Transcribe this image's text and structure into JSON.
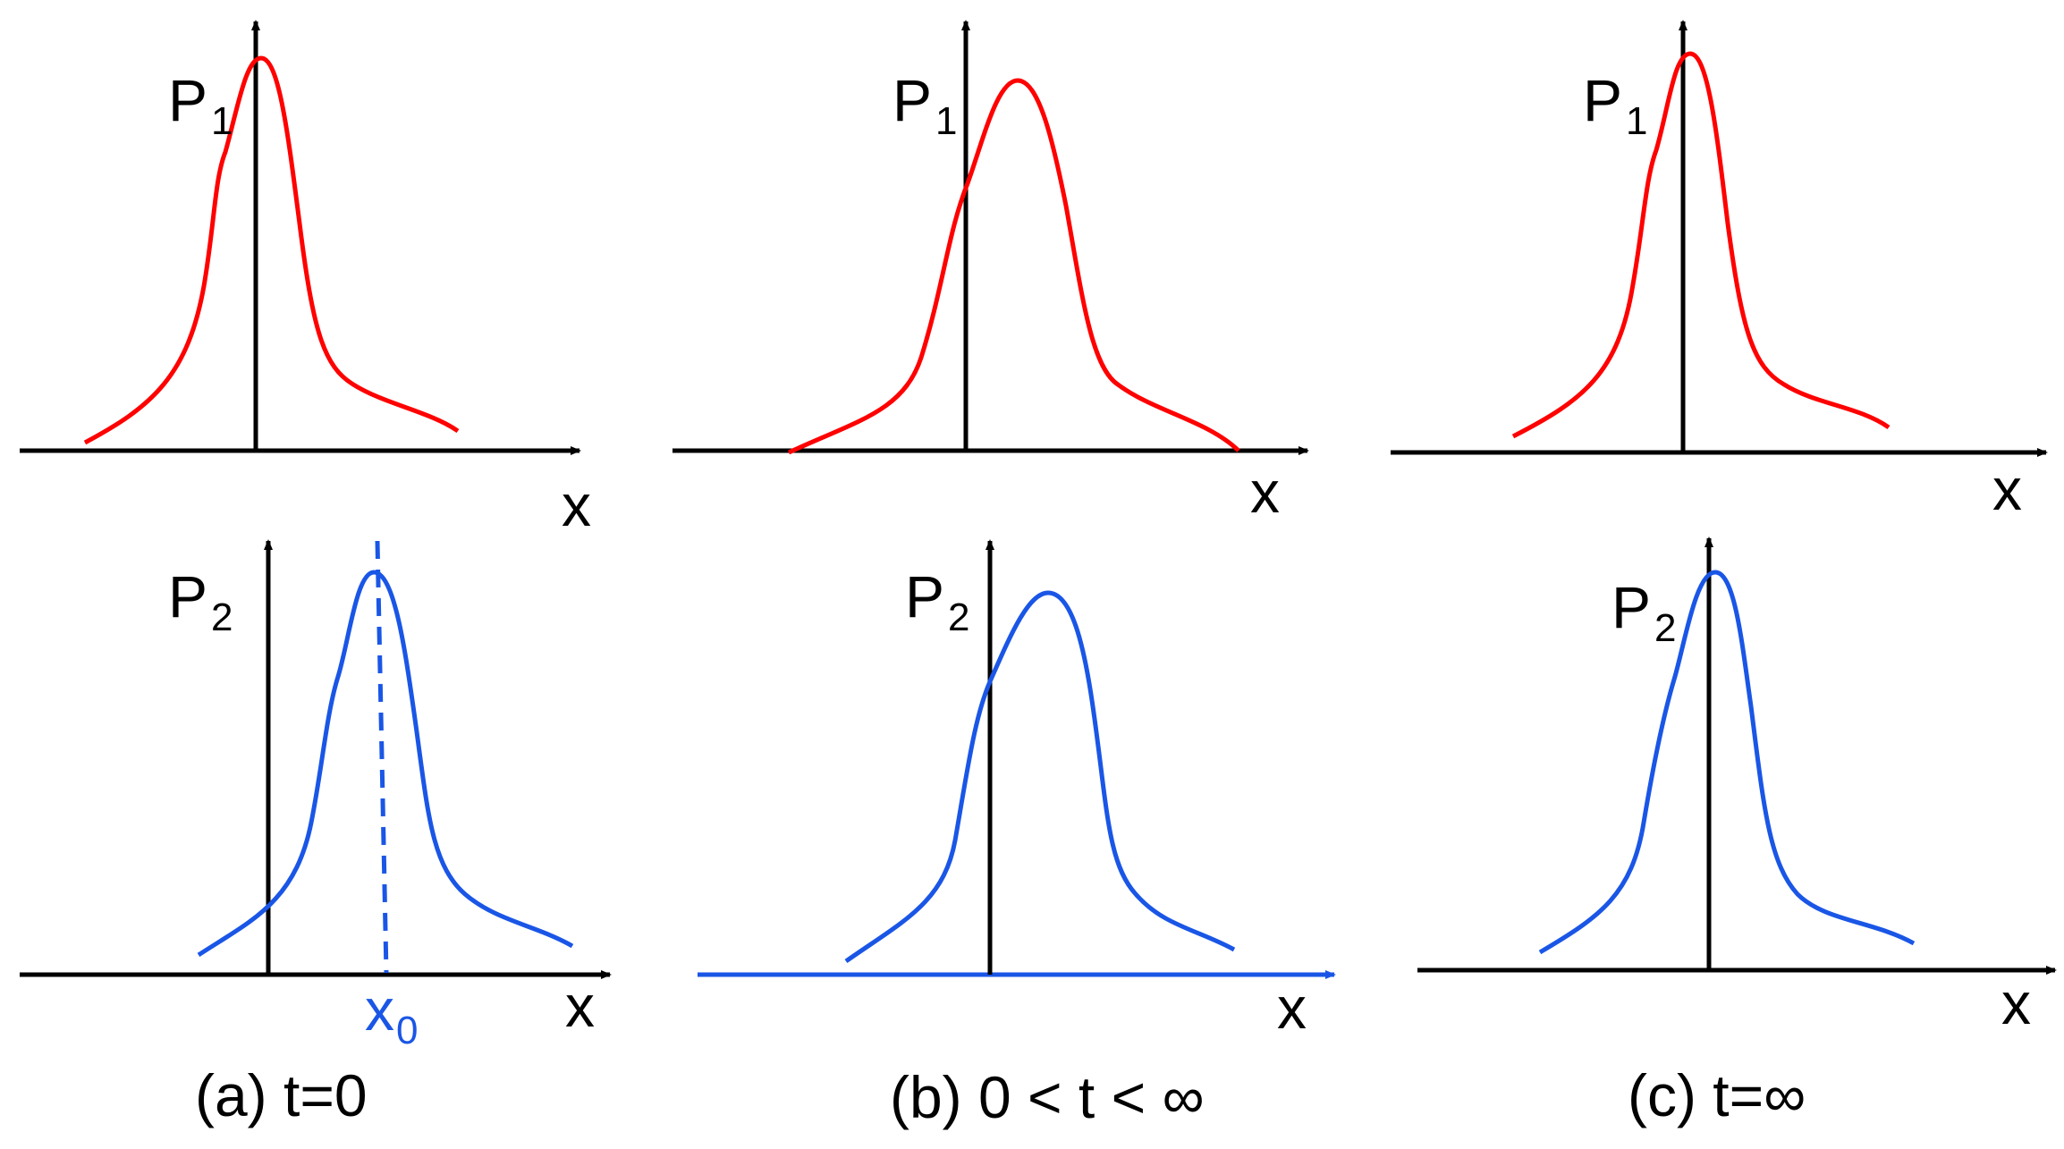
{
  "colors": {
    "p1": "#ff0000",
    "p2": "#1a56e6",
    "axis": "#000000"
  },
  "panels": [
    {
      "caption": "(a) t=0",
      "top": {
        "ylabel": "P",
        "ysub": "1",
        "xlabel": "x"
      },
      "bottom": {
        "ylabel": "P",
        "ysub": "2",
        "xlabel": "x",
        "marker": "x",
        "marker_sub": "0"
      }
    },
    {
      "caption": "(b) 0 < t < ∞",
      "top": {
        "ylabel": "P",
        "ysub": "1",
        "xlabel": "x"
      },
      "bottom": {
        "ylabel": "P",
        "ysub": "2",
        "xlabel": "x"
      }
    },
    {
      "caption": "(c) t=∞",
      "top": {
        "ylabel": "P",
        "ysub": "1",
        "xlabel": "x"
      },
      "bottom": {
        "ylabel": "P",
        "ysub": "2",
        "xlabel": "x"
      }
    }
  ]
}
